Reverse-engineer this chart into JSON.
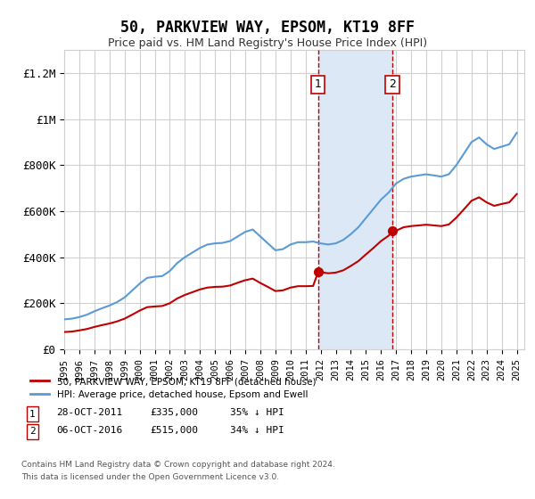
{
  "title": "50, PARKVIEW WAY, EPSOM, KT19 8FF",
  "subtitle": "Price paid vs. HM Land Registry's House Price Index (HPI)",
  "xlabel": "",
  "ylabel": "",
  "ylim": [
    0,
    1300000
  ],
  "yticks": [
    0,
    200000,
    400000,
    600000,
    800000,
    1000000,
    1200000
  ],
  "ytick_labels": [
    "£0",
    "£200K",
    "£400K",
    "£600K",
    "£800K",
    "£1M",
    "£1.2M"
  ],
  "sale1_date": 2011.83,
  "sale1_price": 335000,
  "sale1_label": "1",
  "sale2_date": 2016.76,
  "sale2_price": 515000,
  "sale2_label": "2",
  "shaded_region": [
    2011.83,
    2016.76
  ],
  "legend1": "50, PARKVIEW WAY, EPSOM, KT19 8FF (detached house)",
  "legend2": "HPI: Average price, detached house, Epsom and Ewell",
  "footnote1": "Contains HM Land Registry data © Crown copyright and database right 2024.",
  "footnote2": "This data is licensed under the Open Government Licence v3.0.",
  "table_row1": [
    "1",
    "28-OCT-2011",
    "£335,000",
    "35% ↓ HPI"
  ],
  "table_row2": [
    "2",
    "06-OCT-2016",
    "£515,000",
    "34% ↓ HPI"
  ],
  "hpi_color": "#5b9bd5",
  "price_color": "#c00000",
  "background_color": "#ffffff",
  "grid_color": "#d0d0d0",
  "shaded_color": "#dce8f5"
}
